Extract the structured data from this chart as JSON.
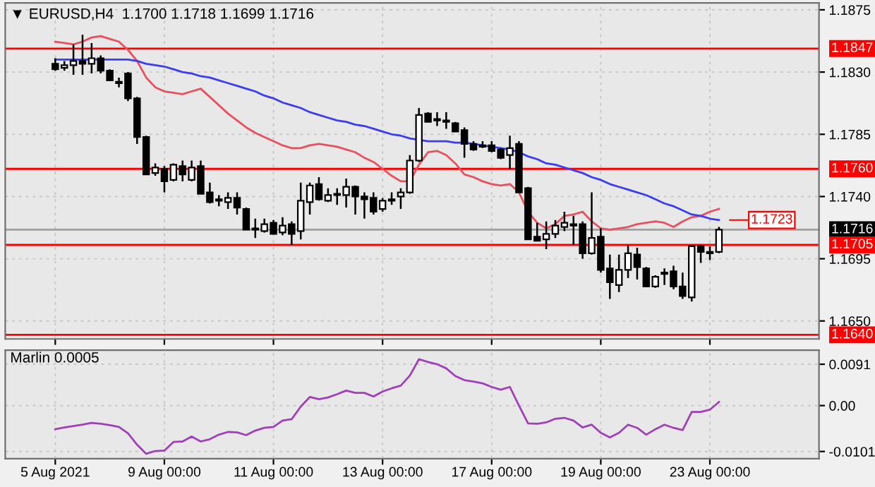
{
  "chart_data": [
    {
      "type": "candlestick",
      "title": "▼ EURUSD,H4  1.1700 1.1718 1.1699 1.1716",
      "categories": [
        null,
        null,
        null,
        null,
        null,
        null,
        null,
        null,
        null,
        null,
        null,
        null,
        null,
        null,
        null,
        null,
        null,
        null,
        null,
        null,
        null,
        null,
        null,
        null,
        null,
        null,
        null,
        null,
        null,
        null,
        null,
        null,
        null,
        null,
        null,
        null,
        null,
        null,
        null,
        null,
        null,
        null,
        null,
        null,
        null,
        null,
        null,
        null,
        null,
        null,
        null,
        null,
        null,
        null,
        null,
        null,
        null,
        null,
        null,
        null,
        null,
        null,
        null,
        null,
        null,
        null,
        null,
        null,
        null,
        null,
        null,
        null,
        null,
        null
      ],
      "ohlc": [
        [
          1.1836,
          1.184,
          1.1831,
          1.1832
        ],
        [
          1.1833,
          1.1838,
          1.1831,
          1.1835
        ],
        [
          1.1835,
          1.185,
          1.1828,
          1.1838
        ],
        [
          1.1838,
          1.1857,
          1.1828,
          1.1836
        ],
        [
          1.1836,
          1.1851,
          1.1829,
          1.184
        ],
        [
          1.184,
          1.1842,
          1.1829,
          1.1831
        ],
        [
          1.1831,
          1.1832,
          1.1824,
          1.1824
        ],
        [
          1.1823,
          1.1826,
          1.1819,
          1.1822
        ],
        [
          1.1829,
          1.183,
          1.1809,
          1.1811
        ],
        [
          1.1811,
          1.1812,
          1.1778,
          1.1783
        ],
        [
          1.1783,
          1.1784,
          1.1756,
          1.1756
        ],
        [
          1.1757,
          1.1764,
          1.1755,
          1.1761
        ],
        [
          1.176,
          1.1762,
          1.1743,
          1.1751
        ],
        [
          1.1752,
          1.1764,
          1.1751,
          1.1763
        ],
        [
          1.1762,
          1.1766,
          1.1751,
          1.1756
        ],
        [
          1.1752,
          1.1766,
          1.1751,
          1.1761
        ],
        [
          1.1762,
          1.1766,
          1.1742,
          1.1742
        ],
        [
          1.1743,
          1.175,
          1.1735,
          1.1736
        ],
        [
          1.1738,
          1.1741,
          1.1733,
          1.1737
        ],
        [
          1.1736,
          1.1743,
          1.1731,
          1.1739
        ],
        [
          1.1739,
          1.1743,
          1.1727,
          1.1732
        ],
        [
          1.1731,
          1.1732,
          1.1716,
          1.1716
        ],
        [
          1.1717,
          1.1724,
          1.171,
          1.1716
        ],
        [
          1.1715,
          1.1724,
          1.1714,
          1.172
        ],
        [
          1.1721,
          1.1723,
          1.1713,
          1.1713
        ],
        [
          1.1714,
          1.1725,
          1.1712,
          1.1719
        ],
        [
          1.172,
          1.1722,
          1.1705,
          1.1713
        ],
        [
          1.1715,
          1.175,
          1.1709,
          1.1737
        ],
        [
          1.1736,
          1.175,
          1.1727,
          1.1748
        ],
        [
          1.1749,
          1.1754,
          1.1737,
          1.1738
        ],
        [
          1.1737,
          1.1746,
          1.1736,
          1.1741
        ],
        [
          1.1741,
          1.1746,
          1.1734,
          1.1742
        ],
        [
          1.1741,
          1.1753,
          1.1732,
          1.1747
        ],
        [
          1.1747,
          1.1748,
          1.1727,
          1.174
        ],
        [
          1.174,
          1.1743,
          1.1724,
          1.1738
        ],
        [
          1.1739,
          1.1743,
          1.1727,
          1.1729
        ],
        [
          1.1731,
          1.1739,
          1.1729,
          1.1737
        ],
        [
          1.1737,
          1.1743,
          1.1734,
          1.1738
        ],
        [
          1.174,
          1.1746,
          1.1731,
          1.1743
        ],
        [
          1.1743,
          1.177,
          1.1742,
          1.1766
        ],
        [
          1.1766,
          1.1804,
          1.1765,
          1.1799
        ],
        [
          1.18,
          1.1801,
          1.1794,
          1.1794
        ],
        [
          1.1795,
          1.1801,
          1.1791,
          1.1796
        ],
        [
          1.1795,
          1.1801,
          1.1789,
          1.1794
        ],
        [
          1.1793,
          1.1794,
          1.1787,
          1.1787
        ],
        [
          1.1788,
          1.179,
          1.1768,
          1.1778
        ],
        [
          1.1778,
          1.178,
          1.1773,
          1.1774
        ],
        [
          1.1776,
          1.178,
          1.1775,
          1.1777
        ],
        [
          1.1777,
          1.178,
          1.1772,
          1.1773
        ],
        [
          1.1774,
          1.1775,
          1.1767,
          1.1768
        ],
        [
          1.177,
          1.1784,
          1.176,
          1.1775
        ],
        [
          1.1778,
          1.178,
          1.1743,
          1.1743
        ],
        [
          1.1746,
          1.1747,
          1.1709,
          1.1709
        ],
        [
          1.1711,
          1.1721,
          1.1708,
          1.1708
        ],
        [
          1.1709,
          1.1722,
          1.1702,
          1.1713
        ],
        [
          1.1713,
          1.1723,
          1.171,
          1.1719
        ],
        [
          1.1718,
          1.1729,
          1.1715,
          1.1721
        ],
        [
          1.172,
          1.1726,
          1.1705,
          1.1719
        ],
        [
          1.172,
          1.1722,
          1.1695,
          1.1699
        ],
        [
          1.1699,
          1.1743,
          1.1698,
          1.171
        ],
        [
          1.1711,
          1.1717,
          1.1685,
          1.1687
        ],
        [
          1.1688,
          1.1698,
          1.1666,
          1.1678
        ],
        [
          1.1676,
          1.1698,
          1.1671,
          1.1687
        ],
        [
          1.1687,
          1.1705,
          1.1681,
          1.1699
        ],
        [
          1.1698,
          1.1703,
          1.168,
          1.1689
        ],
        [
          1.1688,
          1.1689,
          1.1675,
          1.1675
        ],
        [
          1.1675,
          1.1683,
          1.1674,
          1.1682
        ],
        [
          1.1684,
          1.1688,
          1.1676,
          1.1685
        ],
        [
          1.1686,
          1.169,
          1.1673,
          1.1675
        ],
        [
          1.1675,
          1.1685,
          1.1666,
          1.1668
        ],
        [
          1.1667,
          1.1705,
          1.1664,
          1.1704
        ],
        [
          1.1704,
          1.1705,
          1.1692,
          1.17
        ],
        [
          1.17,
          1.1704,
          1.1694,
          1.1699
        ],
        [
          1.17,
          1.1718,
          1.1699,
          1.1716
        ]
      ],
      "color": "#000000",
      "series": [
        {
          "type": "line",
          "color": "#e8505e",
          "values": [
            1.1852,
            1.1851,
            1.185,
            1.1852,
            1.1855,
            1.1856,
            1.1854,
            1.1852,
            1.1846,
            1.1838,
            1.1826,
            1.1819,
            1.1816,
            1.1815,
            1.1814,
            1.1816,
            1.1818,
            1.1812,
            1.1806,
            1.18,
            1.1795,
            1.179,
            1.1786,
            1.1783,
            1.178,
            1.1777,
            1.1775,
            1.1775,
            1.1777,
            1.1778,
            1.1777,
            1.1776,
            1.1774,
            1.1772,
            1.1768,
            1.1765,
            1.176,
            1.1755,
            1.1751,
            1.1751,
            1.1763,
            1.1772,
            1.1773,
            1.177,
            1.1764,
            1.1756,
            1.1754,
            1.1751,
            1.1749,
            1.1748,
            1.1749,
            1.1743,
            1.1729,
            1.1721,
            1.1717,
            1.172,
            1.1726,
            1.1727,
            1.1729,
            1.1722,
            1.1717,
            1.1716,
            1.1717,
            1.1718,
            1.172,
            1.1721,
            1.1722,
            1.1721,
            1.1718,
            1.1722,
            1.1725,
            1.1726,
            1.1729,
            1.1731
          ]
        },
        {
          "type": "line",
          "color": "#3c3cf0",
          "values": [
            1.1839,
            1.1839,
            1.1839,
            1.1839,
            1.1839,
            1.1839,
            1.1839,
            1.1839,
            1.1839,
            1.1838,
            1.1836,
            1.1835,
            1.1834,
            1.1832,
            1.183,
            1.1829,
            1.1827,
            1.1826,
            1.1824,
            1.1822,
            1.182,
            1.1818,
            1.1816,
            1.1813,
            1.1811,
            1.1808,
            1.1806,
            1.1804,
            1.1801,
            1.1799,
            1.1797,
            1.1795,
            1.1794,
            1.1792,
            1.1791,
            1.1789,
            1.1787,
            1.1785,
            1.1784,
            1.1782,
            1.1781,
            1.178,
            1.178,
            1.178,
            1.1779,
            1.1779,
            1.1778,
            1.1777,
            1.1776,
            1.1775,
            1.1774,
            1.1772,
            1.1769,
            1.1767,
            1.1764,
            1.1763,
            1.1761,
            1.1759,
            1.1757,
            1.1754,
            1.1752,
            1.1749,
            1.1747,
            1.1745,
            1.1743,
            1.1741,
            1.1738,
            1.1735,
            1.1733,
            1.173,
            1.1727,
            1.1726,
            1.1724,
            1.1723
          ]
        }
      ],
      "ylim": [
        1.1637,
        1.188
      ],
      "yticks": [
        {
          "value": 1.165,
          "label": "1.1650"
        },
        1.1695,
        {
          "value": 1.174,
          "label": "1.1740"
        },
        1.1785,
        {
          "value": 1.183,
          "label": "1.1830"
        },
        1.1875
      ],
      "ref_lines": [
        {
          "axis": "y",
          "value": 1.1847,
          "label": "1.1847",
          "color": "#ff0000"
        },
        {
          "axis": "y",
          "value": 1.176,
          "label": "1.1760",
          "color": "#ff0000"
        },
        {
          "axis": "y",
          "value": 1.1716,
          "label": "1.1716",
          "color": "#a0a0a0"
        },
        {
          "axis": "y",
          "value": 1.1705,
          "label": "1.1705",
          "color": "#ff0000"
        },
        {
          "axis": "y",
          "value": 1.164,
          "label": "1.1640",
          "color": "#ff0000"
        }
      ],
      "annotations": [
        "1.1723"
      ],
      "grid": true,
      "tick_labels": "y"
    },
    {
      "type": "line",
      "title": "Marlin 0.0005",
      "categories": [
        "5 Aug 2021",
        null,
        null,
        null,
        null,
        null,
        null,
        null,
        null,
        null,
        null,
        null,
        "9 Aug 00:00",
        null,
        null,
        null,
        null,
        null,
        null,
        null,
        null,
        null,
        null,
        null,
        "11 Aug 00:00",
        null,
        null,
        null,
        null,
        null,
        null,
        null,
        null,
        null,
        null,
        null,
        "13 Aug 00:00",
        null,
        null,
        null,
        null,
        null,
        null,
        null,
        null,
        null,
        null,
        null,
        "17 Aug 00:00",
        null,
        null,
        null,
        null,
        null,
        null,
        null,
        null,
        null,
        null,
        null,
        "19 Aug 00:00",
        null,
        null,
        null,
        null,
        null,
        null,
        null,
        null,
        null,
        null,
        null,
        "23 Aug 00:00",
        null
      ],
      "series": [
        {
          "color": "#a040b8",
          "values": [
            -0.0052,
            -0.0048,
            -0.0045,
            -0.0042,
            -0.0038,
            -0.004,
            -0.0043,
            -0.0047,
            -0.0061,
            -0.0086,
            -0.0106,
            -0.01,
            -0.0099,
            -0.008,
            -0.0079,
            -0.0068,
            -0.0079,
            -0.0074,
            -0.0064,
            -0.0058,
            -0.0059,
            -0.0065,
            -0.0055,
            -0.0049,
            -0.0047,
            -0.0033,
            -0.003,
            -0.0002,
            0.0019,
            0.0014,
            0.0018,
            0.0025,
            0.0033,
            0.0028,
            0.0028,
            0.002,
            0.0031,
            0.0038,
            0.0044,
            0.0066,
            0.0102,
            0.0096,
            0.0091,
            0.0082,
            0.0065,
            0.0056,
            0.0053,
            0.0049,
            0.0041,
            0.0035,
            0.0041,
            0.0,
            -0.0039,
            -0.004,
            -0.0037,
            -0.0029,
            -0.0027,
            -0.0033,
            -0.0048,
            -0.0042,
            -0.006,
            -0.007,
            -0.006,
            -0.0042,
            -0.0049,
            -0.0064,
            -0.0052,
            -0.0042,
            -0.0049,
            -0.0054,
            -0.0014,
            -0.0014,
            -0.0009,
            0.0008
          ]
        }
      ],
      "ylim": [
        -0.0117,
        0.0122
      ],
      "yticks": [
        0.0091,
        {
          "value": 0,
          "label": "0.00"
        },
        {
          "value": -0.0101,
          "label": "-0.0101"
        }
      ],
      "grid": true
    }
  ]
}
